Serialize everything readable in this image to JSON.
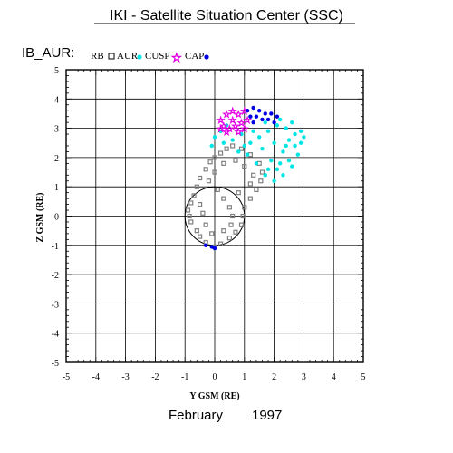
{
  "header": {
    "title": "IKI - Satellite Situation Center (SSC)",
    "subtitle": "IB_AUR:"
  },
  "footer": {
    "month": "February",
    "year": "1997"
  },
  "chart_data": {
    "type": "scatter",
    "title": "IKI - Satellite Situation Center (SSC)",
    "subtitle": "IB_AUR:",
    "xlabel": "Y GSM (RE)",
    "ylabel": "Z GSM (RE)",
    "xlim": [
      -5,
      5
    ],
    "ylim": [
      -5,
      5
    ],
    "xticks": [
      -5,
      -4,
      -3,
      -2,
      -1,
      0,
      1,
      2,
      3,
      4,
      5
    ],
    "yticks": [
      -5,
      -4,
      -3,
      -2,
      -1,
      0,
      1,
      2,
      3,
      4,
      5
    ],
    "grid": true,
    "legend_position": "top-left",
    "earth": {
      "center": [
        0,
        0
      ],
      "radius": 1
    },
    "series": [
      {
        "name": "RB",
        "marker": "square-open",
        "color": "#808080",
        "points": [
          [
            0.0,
            -1.05
          ],
          [
            0.2,
            -0.95
          ],
          [
            -0.3,
            -0.9
          ],
          [
            -0.5,
            -0.7
          ],
          [
            -0.6,
            -0.5
          ],
          [
            -0.8,
            -0.2
          ],
          [
            -0.85,
            0.0
          ],
          [
            -0.9,
            0.2
          ],
          [
            -0.8,
            0.45
          ],
          [
            -0.7,
            0.7
          ],
          [
            -0.6,
            1.0
          ],
          [
            -0.5,
            1.3
          ],
          [
            -0.3,
            1.6
          ],
          [
            -0.15,
            1.85
          ],
          [
            0.0,
            2.0
          ],
          [
            0.2,
            2.15
          ],
          [
            0.4,
            2.3
          ],
          [
            0.6,
            2.4
          ],
          [
            0.9,
            2.3
          ],
          [
            1.2,
            2.1
          ],
          [
            1.5,
            1.8
          ],
          [
            1.6,
            1.5
          ],
          [
            1.55,
            1.2
          ],
          [
            1.4,
            0.9
          ],
          [
            1.2,
            0.6
          ],
          [
            1.0,
            0.3
          ],
          [
            0.95,
            0.0
          ],
          [
            0.9,
            -0.3
          ],
          [
            0.7,
            -0.55
          ],
          [
            0.5,
            -0.75
          ],
          [
            -0.2,
            1.2
          ],
          [
            0.1,
            0.9
          ],
          [
            0.3,
            0.6
          ],
          [
            0.5,
            0.3
          ],
          [
            0.6,
            0.0
          ],
          [
            0.55,
            -0.3
          ],
          [
            -0.4,
            0.1
          ],
          [
            -0.3,
            -0.3
          ],
          [
            -0.5,
            0.4
          ],
          [
            0.0,
            1.5
          ],
          [
            0.3,
            1.8
          ],
          [
            0.7,
            1.9
          ],
          [
            1.0,
            1.7
          ],
          [
            1.3,
            1.4
          ],
          [
            1.2,
            1.1
          ],
          [
            0.8,
            0.8
          ],
          [
            -0.1,
            -0.6
          ],
          [
            0.3,
            -0.5
          ]
        ]
      },
      {
        "name": "AUR",
        "marker": "dot",
        "color": "#00e5e5",
        "points": [
          [
            -0.1,
            2.4
          ],
          [
            0.0,
            2.7
          ],
          [
            0.2,
            2.9
          ],
          [
            0.4,
            3.1
          ],
          [
            0.3,
            2.5
          ],
          [
            0.6,
            2.6
          ],
          [
            0.9,
            2.8
          ],
          [
            1.2,
            2.5
          ],
          [
            1.5,
            2.7
          ],
          [
            1.8,
            2.9
          ],
          [
            2.1,
            3.1
          ],
          [
            2.4,
            3.0
          ],
          [
            2.7,
            2.8
          ],
          [
            2.9,
            2.5
          ],
          [
            2.8,
            2.1
          ],
          [
            2.6,
            1.7
          ],
          [
            2.3,
            1.4
          ],
          [
            2.0,
            1.2
          ],
          [
            1.7,
            1.4
          ],
          [
            1.4,
            1.8
          ],
          [
            1.1,
            2.1
          ],
          [
            1.6,
            2.3
          ],
          [
            2.0,
            2.5
          ],
          [
            2.3,
            2.2
          ],
          [
            2.5,
            2.6
          ],
          [
            2.2,
            1.8
          ],
          [
            1.9,
            1.9
          ],
          [
            1.3,
            2.9
          ],
          [
            1.7,
            3.2
          ],
          [
            2.2,
            3.3
          ],
          [
            2.6,
            3.2
          ],
          [
            3.0,
            2.7
          ],
          [
            2.9,
            2.9
          ],
          [
            2.4,
            2.4
          ],
          [
            1.0,
            2.4
          ],
          [
            0.8,
            2.2
          ],
          [
            2.1,
            1.6
          ],
          [
            1.8,
            1.6
          ],
          [
            2.5,
            1.9
          ],
          [
            2.7,
            2.4
          ]
        ]
      },
      {
        "name": "CUSP",
        "marker": "star-open",
        "color": "#e600e6",
        "points": [
          [
            0.2,
            3.3
          ],
          [
            0.4,
            3.5
          ],
          [
            0.6,
            3.3
          ],
          [
            0.8,
            3.5
          ],
          [
            1.0,
            3.6
          ],
          [
            0.5,
            3.0
          ],
          [
            0.7,
            3.1
          ],
          [
            0.9,
            3.2
          ],
          [
            0.3,
            3.1
          ],
          [
            0.6,
            3.6
          ],
          [
            1.1,
            3.3
          ],
          [
            0.4,
            2.9
          ],
          [
            0.8,
            2.9
          ],
          [
            0.2,
            3.0
          ],
          [
            1.0,
            3.0
          ]
        ]
      },
      {
        "name": "CAP",
        "marker": "dot",
        "color": "#0000e6",
        "points": [
          [
            1.1,
            3.6
          ],
          [
            1.3,
            3.7
          ],
          [
            1.5,
            3.6
          ],
          [
            1.7,
            3.5
          ],
          [
            1.9,
            3.5
          ],
          [
            2.1,
            3.4
          ],
          [
            1.4,
            3.4
          ],
          [
            1.6,
            3.3
          ],
          [
            1.2,
            3.4
          ],
          [
            1.8,
            3.3
          ],
          [
            2.0,
            3.2
          ],
          [
            1.3,
            3.2
          ],
          [
            -0.1,
            -1.05
          ],
          [
            -0.3,
            -1.0
          ],
          [
            0.0,
            -1.1
          ]
        ]
      }
    ]
  }
}
